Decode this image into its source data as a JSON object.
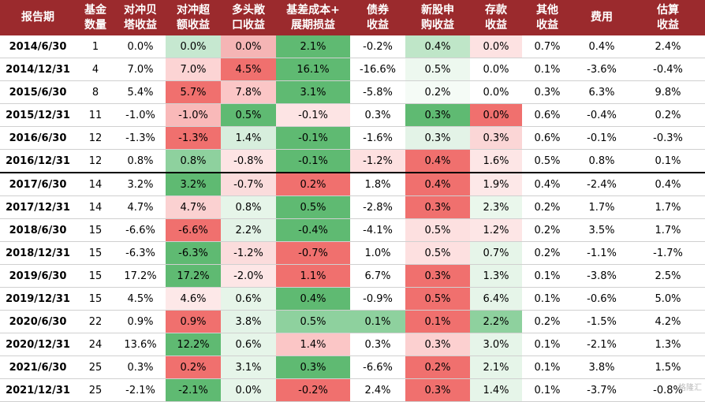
{
  "headers": [
    "报告期",
    "基金\n数量",
    "对冲贝\n塔收益",
    "对冲超\n额收益",
    "多头敞\n口收益",
    "基差成本+\n展期损益",
    "债券\n收益",
    "新股申\n购收益",
    "存款\n收益",
    "其他\n收益",
    "费用",
    "估算\n收益"
  ],
  "rows": [
    [
      "2014/6/30",
      "1",
      "0.0%",
      "0.0%",
      "0.0%",
      "2.1%",
      "-0.2%",
      "0.4%",
      "0.0%",
      "0.7%",
      "0.4%",
      "2.4%"
    ],
    [
      "2014/12/31",
      "4",
      "7.0%",
      "7.0%",
      "4.5%",
      "16.1%",
      "-16.6%",
      "0.5%",
      "0.0%",
      "0.1%",
      "-3.6%",
      "-0.4%"
    ],
    [
      "2015/6/30",
      "8",
      "5.4%",
      "5.7%",
      "7.8%",
      "3.1%",
      "-5.8%",
      "0.2%",
      "0.0%",
      "0.3%",
      "6.3%",
      "9.8%"
    ],
    [
      "2015/12/31",
      "11",
      "-1.0%",
      "-1.0%",
      "0.5%",
      "-0.1%",
      "0.3%",
      "0.3%",
      "0.0%",
      "0.6%",
      "-0.4%",
      "0.2%"
    ],
    [
      "2016/6/30",
      "12",
      "-1.3%",
      "-1.3%",
      "1.4%",
      "-0.1%",
      "-1.6%",
      "0.3%",
      "0.3%",
      "0.6%",
      "-0.1%",
      "-0.3%"
    ],
    [
      "2016/12/31",
      "12",
      "0.8%",
      "0.8%",
      "-0.8%",
      "-0.1%",
      "-1.2%",
      "0.4%",
      "1.6%",
      "0.5%",
      "0.8%",
      "0.1%"
    ],
    [
      "2017/6/30",
      "14",
      "3.2%",
      "3.2%",
      "-0.7%",
      "0.2%",
      "1.8%",
      "0.4%",
      "1.9%",
      "0.4%",
      "-2.4%",
      "0.4%"
    ],
    [
      "2017/12/31",
      "14",
      "4.7%",
      "4.7%",
      "0.8%",
      "0.5%",
      "-2.8%",
      "0.3%",
      "2.3%",
      "0.2%",
      "1.7%",
      "1.7%"
    ],
    [
      "2018/6/30",
      "15",
      "-6.6%",
      "-6.6%",
      "2.2%",
      "-0.4%",
      "-4.1%",
      "0.5%",
      "1.2%",
      "0.2%",
      "3.5%",
      "1.7%"
    ],
    [
      "2018/12/31",
      "15",
      "-6.3%",
      "-6.3%",
      "-1.2%",
      "-0.7%",
      "1.0%",
      "0.5%",
      "0.7%",
      "0.2%",
      "-1.1%",
      "-1.7%"
    ],
    [
      "2019/6/30",
      "15",
      "17.2%",
      "17.2%",
      "-2.0%",
      "1.1%",
      "6.7%",
      "0.3%",
      "1.3%",
      "0.1%",
      "-3.8%",
      "2.5%"
    ],
    [
      "2019/12/31",
      "15",
      "4.5%",
      "4.6%",
      "0.6%",
      "0.4%",
      "-0.9%",
      "0.5%",
      "6.4%",
      "0.1%",
      "-0.6%",
      "5.0%"
    ],
    [
      "2020/6/30",
      "22",
      "0.9%",
      "0.9%",
      "3.8%",
      "0.5%",
      "0.1%",
      "0.1%",
      "2.2%",
      "0.2%",
      "-1.5%",
      "4.2%"
    ],
    [
      "2020/12/31",
      "24",
      "13.6%",
      "12.2%",
      "0.6%",
      "1.4%",
      "0.3%",
      "0.3%",
      "3.0%",
      "0.1%",
      "-2.1%",
      "1.3%"
    ],
    [
      "2021/6/30",
      "25",
      "0.3%",
      "0.2%",
      "3.1%",
      "0.3%",
      "-6.6%",
      "0.2%",
      "2.1%",
      "0.1%",
      "3.8%",
      "1.5%"
    ],
    [
      "2021/12/31",
      "25",
      "-2.1%",
      "-2.1%",
      "0.0%",
      "-0.2%",
      "2.4%",
      "0.3%",
      "1.4%",
      "0.1%",
      "-3.7%",
      "-0.8%"
    ]
  ],
  "cell_colors": [
    [
      null,
      null,
      null,
      "#c6e8d0",
      "#f5b5b5",
      "#5fba72",
      null,
      "#bfe6c8",
      "#fde2e2",
      null,
      null,
      null
    ],
    [
      null,
      null,
      null,
      "#fcd4d4",
      "#f0706e",
      "#5fba72",
      null,
      "#edf8ef",
      null,
      null,
      null,
      null
    ],
    [
      null,
      null,
      null,
      "#f0706e",
      "#fbc6c6",
      "#5fba72",
      null,
      "#f5fbf6",
      null,
      null,
      null,
      null
    ],
    [
      null,
      null,
      null,
      "#f9b9b9",
      "#5fba72",
      "#fde4e4",
      null,
      "#5fba72",
      "#f0706e",
      null,
      null,
      null
    ],
    [
      null,
      null,
      null,
      "#f0706e",
      "#d7eedd",
      "#5fba72",
      null,
      "#e3f3e7",
      "#fbd6d6",
      null,
      null,
      null
    ],
    [
      null,
      null,
      null,
      "#8ed19e",
      "#fde4e4",
      "#5fba72",
      "#fde0e0",
      "#f0706e",
      "#fde6e6",
      null,
      null,
      null
    ],
    [
      null,
      null,
      null,
      "#5fba72",
      "#fbdcdc",
      "#f0706e",
      null,
      "#f0706e",
      "#fde8e8",
      null,
      null,
      null
    ],
    [
      null,
      null,
      null,
      "#fbd1d1",
      "#e6f5e9",
      "#5fba72",
      null,
      "#f0706e",
      "#eaf7ec",
      null,
      null,
      null
    ],
    [
      null,
      null,
      null,
      "#f0706e",
      "#e3f3e7",
      "#5fba72",
      null,
      "#fde0e0",
      "#fde6e6",
      null,
      null,
      null
    ],
    [
      null,
      null,
      null,
      "#5fba72",
      "#fbdcdc",
      "#f0706e",
      null,
      "#fde0e0",
      "#e6f5e9",
      null,
      null,
      null
    ],
    [
      null,
      null,
      null,
      "#5fba72",
      "#fde6e6",
      "#f0706e",
      null,
      "#f0706e",
      "#e6f5e9",
      null,
      null,
      null
    ],
    [
      null,
      null,
      null,
      "#fde8e8",
      "#e6f5e9",
      "#5fba72",
      null,
      "#f0706e",
      "#e6f5e9",
      null,
      null,
      null
    ],
    [
      null,
      null,
      null,
      "#f0706e",
      "#e3f3e7",
      "#8ed19e",
      "#8ed19e",
      "#f0706e",
      "#8ed19e",
      null,
      null,
      null
    ],
    [
      null,
      null,
      null,
      "#5fba72",
      "#e6f5e9",
      "#fbc6c6",
      null,
      "#fcd0d0",
      "#e6f5e9",
      null,
      null,
      null
    ],
    [
      null,
      null,
      null,
      "#f0706e",
      "#e6f5e9",
      "#5fba72",
      null,
      "#f0706e",
      "#e6f5e9",
      null,
      null,
      null
    ],
    [
      null,
      null,
      null,
      "#5fba72",
      "#e6f5e9",
      "#f0706e",
      null,
      "#f0706e",
      "#e6f5e9",
      null,
      null,
      null
    ]
  ],
  "watermark": "格隆汇"
}
